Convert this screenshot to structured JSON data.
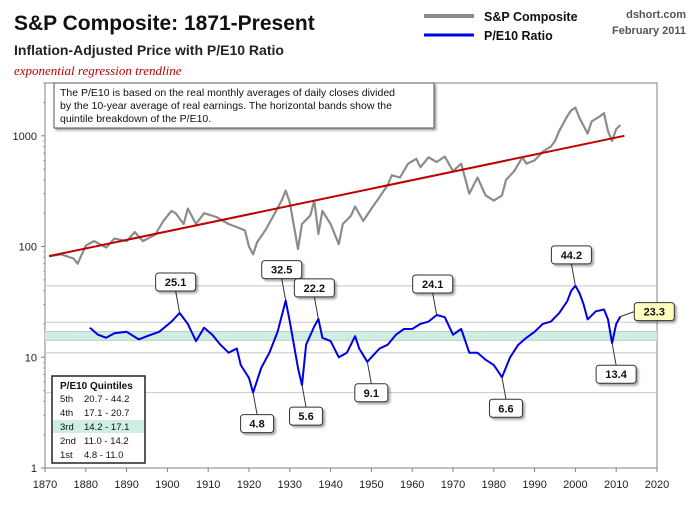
{
  "title": "S&P Composite: 1871-Present",
  "subtitle": "Inflation-Adjusted  Price with P/E10 Ratio",
  "trend_note": "exponential regression trendline",
  "source": "dshort.com",
  "date": "February 2011",
  "note_lines": [
    "The P/E10 is based on the real monthly  averages of daily closes divided",
    "by the 10-year average of real earnings. The horizontal  bands show the",
    "quintile breakdown  of the P/E10."
  ],
  "colors": {
    "price": "#8c8c8c",
    "pe10": "#0000e6",
    "trend": "#c00000",
    "band3": "#cdeee0",
    "quintile_line": "#c8c8c8"
  },
  "chart_data": {
    "type": "line",
    "x_ticks": [
      "1870",
      "1880",
      "1890",
      "1900",
      "1910",
      "1920",
      "1930",
      "1940",
      "1950",
      "1960",
      "1970",
      "1980",
      "1990",
      "2000",
      "2010",
      "2020"
    ],
    "xlim": [
      1870,
      2020
    ],
    "y_scale": "log",
    "ylim": [
      1,
      3000
    ],
    "y_ticks": [
      "1",
      "10",
      "100",
      "1000"
    ],
    "grid": false,
    "legend": {
      "placement": "top-center",
      "entries": [
        "S&P Composite",
        "P/E10 Ratio"
      ]
    },
    "series": [
      {
        "name": "S&P Composite",
        "x": [
          1871,
          1874,
          1877,
          1878,
          1880,
          1882,
          1885,
          1887,
          1890,
          1892,
          1894,
          1897,
          1899,
          1901,
          1902,
          1904,
          1905,
          1907,
          1909,
          1912,
          1915,
          1917,
          1919,
          1920,
          1921,
          1922,
          1924,
          1926,
          1928,
          1929,
          1930,
          1932,
          1933,
          1935,
          1936,
          1937,
          1938,
          1940,
          1942,
          1943,
          1945,
          1946,
          1948,
          1950,
          1952,
          1954,
          1955,
          1957,
          1959,
          1961,
          1962,
          1964,
          1966,
          1968,
          1970,
          1972,
          1974,
          1976,
          1978,
          1980,
          1982,
          1983,
          1985,
          1987,
          1988,
          1990,
          1992,
          1994,
          1995,
          1996,
          1998,
          1999,
          2000,
          2001,
          2003,
          2004,
          2006,
          2007,
          2008,
          2009,
          2010,
          2011
        ],
        "values": [
          82,
          85,
          78,
          70,
          102,
          112,
          98,
          118,
          112,
          135,
          112,
          128,
          170,
          210,
          200,
          160,
          220,
          160,
          200,
          185,
          160,
          150,
          140,
          100,
          85,
          110,
          140,
          190,
          260,
          320,
          250,
          95,
          160,
          190,
          260,
          130,
          210,
          160,
          105,
          160,
          190,
          230,
          170,
          220,
          280,
          360,
          440,
          420,
          560,
          620,
          520,
          640,
          580,
          650,
          480,
          560,
          300,
          420,
          290,
          260,
          290,
          400,
          480,
          640,
          560,
          600,
          720,
          800,
          900,
          1100,
          1500,
          1700,
          1800,
          1450,
          1050,
          1350,
          1500,
          1600,
          1100,
          900,
          1150,
          1250
        ]
      },
      {
        "name": "P/E10 Ratio",
        "x": [
          1881,
          1883,
          1885,
          1887,
          1890,
          1893,
          1895,
          1898,
          1901,
          1903,
          1905,
          1907,
          1909,
          1911,
          1913,
          1915,
          1917,
          1918,
          1920,
          1921,
          1923,
          1925,
          1927,
          1929,
          1930,
          1931,
          1932,
          1933,
          1934,
          1936,
          1937,
          1938,
          1940,
          1942,
          1944,
          1946,
          1947,
          1949,
          1950,
          1952,
          1954,
          1956,
          1958,
          1960,
          1962,
          1964,
          1966,
          1968,
          1970,
          1972,
          1974,
          1976,
          1978,
          1980,
          1981,
          1982,
          1984,
          1986,
          1988,
          1990,
          1992,
          1994,
          1996,
          1998,
          1999,
          2000,
          2001,
          2002,
          2003,
          2005,
          2007,
          2008,
          2009,
          2010,
          2011
        ],
        "values": [
          18.5,
          16,
          15,
          16.5,
          17,
          14.5,
          15.5,
          17,
          21,
          25.1,
          20,
          14,
          18.5,
          16,
          13,
          11,
          12,
          8.5,
          6.5,
          4.8,
          8,
          11,
          17,
          32.5,
          21,
          13,
          8,
          5.6,
          13,
          19,
          22.2,
          15,
          14,
          10,
          11,
          15.5,
          12,
          9.1,
          10,
          12,
          13,
          16,
          18,
          18,
          20,
          21,
          24.1,
          23,
          16,
          18,
          11,
          11,
          9.5,
          8.5,
          7.5,
          6.6,
          10,
          13,
          15,
          17,
          20,
          21,
          25,
          32,
          40,
          44.2,
          38,
          30,
          22,
          26,
          27,
          22,
          13.4,
          20,
          23.3
        ]
      },
      {
        "name": "exponential regression trendline",
        "x": [
          1871,
          2012
        ],
        "values": [
          82,
          1000
        ]
      }
    ],
    "annotations": [
      {
        "x": 1903,
        "y": 25.1,
        "label": "25.1"
      },
      {
        "x": 1921,
        "y": 4.8,
        "label": "4.8"
      },
      {
        "x": 1929,
        "y": 32.5,
        "label": "32.5"
      },
      {
        "x": 1933,
        "y": 5.6,
        "label": "5.6"
      },
      {
        "x": 1937,
        "y": 22.2,
        "label": "22.2"
      },
      {
        "x": 1949,
        "y": 9.1,
        "label": "9.1"
      },
      {
        "x": 1966,
        "y": 24.1,
        "label": "24.1"
      },
      {
        "x": 1982,
        "y": 6.6,
        "label": "6.6"
      },
      {
        "x": 2000,
        "y": 44.2,
        "label": "44.2"
      },
      {
        "x": 2009,
        "y": 13.4,
        "label": "13.4"
      },
      {
        "x": 2011,
        "y": 23.3,
        "label": "23.3",
        "highlight": true
      }
    ],
    "quintiles": {
      "title": "P/E10 Quintiles",
      "rows": [
        {
          "name": "5th",
          "range": "20.7 - 44.2",
          "low": 20.7,
          "high": 44.2
        },
        {
          "name": "4th",
          "range": "17.1 - 20.7",
          "low": 17.1,
          "high": 20.7
        },
        {
          "name": "3rd",
          "range": "14.2 - 17.1",
          "low": 14.2,
          "high": 17.1,
          "highlight": true
        },
        {
          "name": "2nd",
          "range": "11.0 - 14.2",
          "low": 11.0,
          "high": 14.2
        },
        {
          "name": "1st",
          "range": "4.8 - 11.0",
          "low": 4.8,
          "high": 11.0
        }
      ]
    }
  }
}
